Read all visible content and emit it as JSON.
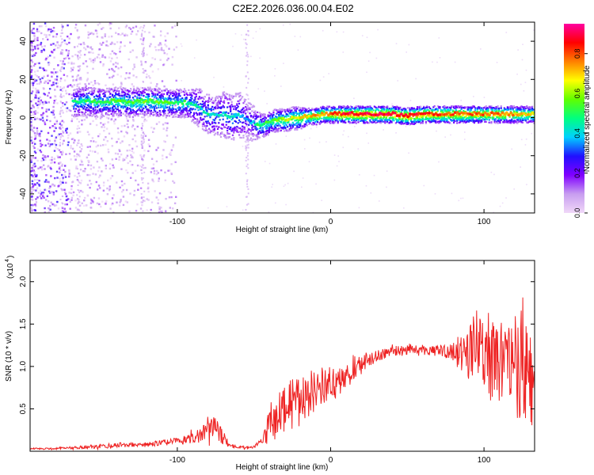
{
  "title": "C2E2.2026.036.00.04.E02",
  "chart_data": [
    {
      "type": "heatmap",
      "xlabel": "Height of straight line (km)",
      "ylabel": "Frequency (Hz)",
      "xlim": [
        -196,
        133
      ],
      "ylim": [
        -50,
        50
      ],
      "x_ticks": [
        -100,
        0,
        100
      ],
      "x_tick_labels": [
        "-100",
        "0",
        "100"
      ],
      "y_ticks": [
        -40,
        -20,
        0,
        20,
        40
      ],
      "y_tick_labels": [
        "-40",
        "-20",
        "0",
        "20",
        "40"
      ],
      "colorbar": {
        "label": "Normalized spectral amplitude",
        "range": [
          0,
          0.95
        ],
        "ticks": [
          0.0,
          0.2,
          0.4,
          0.6,
          0.8
        ],
        "tick_labels": [
          "0.0",
          "0.2",
          "0.4",
          "0.6",
          "0.8"
        ],
        "colors": [
          "#f0d8f8",
          "#c89ef0",
          "#8000ff",
          "#2010ff",
          "#00d0ff",
          "#00ff80",
          "#60ff00",
          "#ffff00",
          "#ff8000",
          "#ff0000",
          "#ff00a0"
        ]
      },
      "ridge": {
        "x": [
          -170,
          -160,
          -150,
          -140,
          -130,
          -120,
          -110,
          -100,
          -95,
          -90,
          -85,
          -80,
          -75,
          -70,
          -65,
          -60,
          -55,
          -50,
          -48,
          -45,
          -42,
          -40,
          -35,
          -30,
          -25,
          -20,
          -15,
          -10,
          -5,
          0,
          5,
          10,
          20,
          30,
          40,
          50,
          60,
          70,
          80,
          90,
          100,
          110,
          120,
          130
        ],
        "y": [
          8,
          9,
          8,
          9,
          8,
          9,
          8,
          8,
          8,
          7,
          5,
          2,
          1,
          2,
          0,
          2,
          -1,
          -3,
          -3,
          -4,
          -3,
          -2,
          -1,
          -1,
          0,
          0,
          1,
          1,
          2,
          2,
          2,
          2,
          2,
          2,
          2,
          1,
          2,
          2,
          2,
          2,
          2,
          2,
          2,
          2
        ],
        "amplitude": [
          0.4,
          0.45,
          0.45,
          0.5,
          0.5,
          0.5,
          0.5,
          0.45,
          0.45,
          0.4,
          0.35,
          0.4,
          0.35,
          0.35,
          0.4,
          0.35,
          0.3,
          0.3,
          0.5,
          0.45,
          0.5,
          0.5,
          0.55,
          0.6,
          0.6,
          0.65,
          0.65,
          0.7,
          0.7,
          0.75,
          0.8,
          0.85,
          0.85,
          0.85,
          0.85,
          0.85,
          0.8,
          0.8,
          0.75,
          0.75,
          0.75,
          0.75,
          0.7,
          0.65
        ],
        "spread_hz": [
          5,
          5,
          5,
          5,
          5,
          5,
          5,
          5,
          5,
          6,
          7,
          7,
          7,
          8,
          8,
          8,
          7,
          6,
          5,
          4,
          4,
          4,
          4,
          4,
          4,
          4,
          3,
          3,
          3,
          3,
          3,
          3,
          3,
          3,
          3,
          3,
          3,
          3,
          3,
          3,
          3,
          3,
          3,
          3
        ]
      }
    },
    {
      "type": "line",
      "xlabel": "Height of straight line (km)",
      "ylabel": "SNR (10 * v/v)",
      "y_scale_label": "(x10",
      "y_scale_exponent": "4",
      "xlim": [
        -196,
        133
      ],
      "ylim": [
        0,
        2.25
      ],
      "x_ticks": [
        -100,
        0,
        100
      ],
      "x_tick_labels": [
        "-100",
        "0",
        "100"
      ],
      "y_ticks": [
        0.5,
        1.0,
        1.5,
        2.0
      ],
      "y_tick_labels": [
        "0.5",
        "1.0",
        "1.5",
        "2.0"
      ],
      "series": [
        {
          "name": "SNR",
          "color": "#ee2222",
          "x": [
            -196,
            -180,
            -160,
            -140,
            -120,
            -100,
            -90,
            -85,
            -80,
            -75,
            -70,
            -65,
            -60,
            -55,
            -50,
            -45,
            -42,
            -40,
            -35,
            -30,
            -25,
            -20,
            -15,
            -10,
            -5,
            0,
            5,
            10,
            15,
            20,
            25,
            30,
            40,
            50,
            60,
            70,
            80,
            85,
            90,
            95,
            100,
            105,
            110,
            115,
            120,
            125,
            130,
            133
          ],
          "y": [
            0.03,
            0.03,
            0.05,
            0.07,
            0.08,
            0.12,
            0.15,
            0.2,
            0.3,
            0.28,
            0.15,
            0.06,
            0.05,
            0.04,
            0.05,
            0.1,
            0.2,
            0.35,
            0.45,
            0.5,
            0.55,
            0.6,
            0.65,
            0.72,
            0.78,
            0.8,
            0.82,
            0.88,
            0.95,
            1.02,
            1.08,
            1.13,
            1.18,
            1.2,
            1.2,
            1.18,
            1.18,
            1.15,
            1.2,
            1.22,
            1.2,
            1.1,
            1.15,
            1.05,
            1.0,
            1.05,
            0.9,
            0.6
          ],
          "noise": [
            0.01,
            0.01,
            0.02,
            0.03,
            0.03,
            0.04,
            0.06,
            0.1,
            0.12,
            0.12,
            0.08,
            0.02,
            0.02,
            0.02,
            0.02,
            0.05,
            0.12,
            0.25,
            0.3,
            0.3,
            0.3,
            0.3,
            0.28,
            0.25,
            0.22,
            0.2,
            0.18,
            0.15,
            0.12,
            0.12,
            0.1,
            0.08,
            0.06,
            0.06,
            0.06,
            0.07,
            0.12,
            0.25,
            0.35,
            0.45,
            0.5,
            0.55,
            0.6,
            0.6,
            0.65,
            0.7,
            0.6,
            0.4
          ]
        }
      ]
    }
  ]
}
